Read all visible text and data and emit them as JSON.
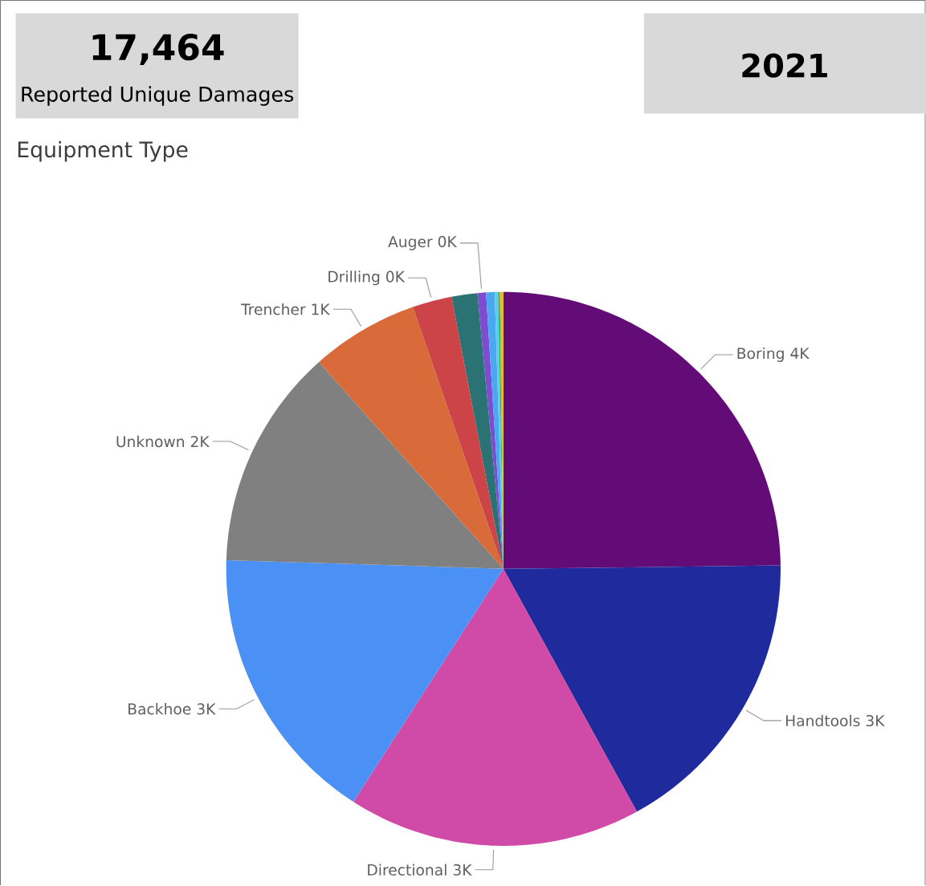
{
  "chart_data": {
    "type": "pie",
    "title": "Equipment Type",
    "categories": [
      "Boring",
      "Handtools",
      "Directional",
      "Backhoe",
      "Unknown",
      "Trencher",
      "Drilling",
      null,
      "Auger",
      null,
      null,
      null,
      null
    ],
    "values": [
      4332,
      3004,
      2986,
      2864,
      2253,
      1100,
      402,
      262,
      87,
      87,
      35,
      17,
      35
    ],
    "value_labels": [
      "4K",
      "3K",
      "3K",
      "3K",
      "2K",
      "1K",
      "0K",
      null,
      "0K",
      null,
      null,
      null,
      null
    ],
    "colors": [
      "#630c78",
      "#1f2a9c",
      "#d04aa8",
      "#4a90f5",
      "#808080",
      "#d96b3a",
      "#cc4447",
      "#2b7275",
      "#7c4dd0",
      "#4aa8f0",
      "#5ad0e8",
      "#3aa85a",
      "#e8b820"
    ],
    "annotations": [
      "17,464",
      "Reported Unique Damages",
      "2021"
    ]
  }
}
